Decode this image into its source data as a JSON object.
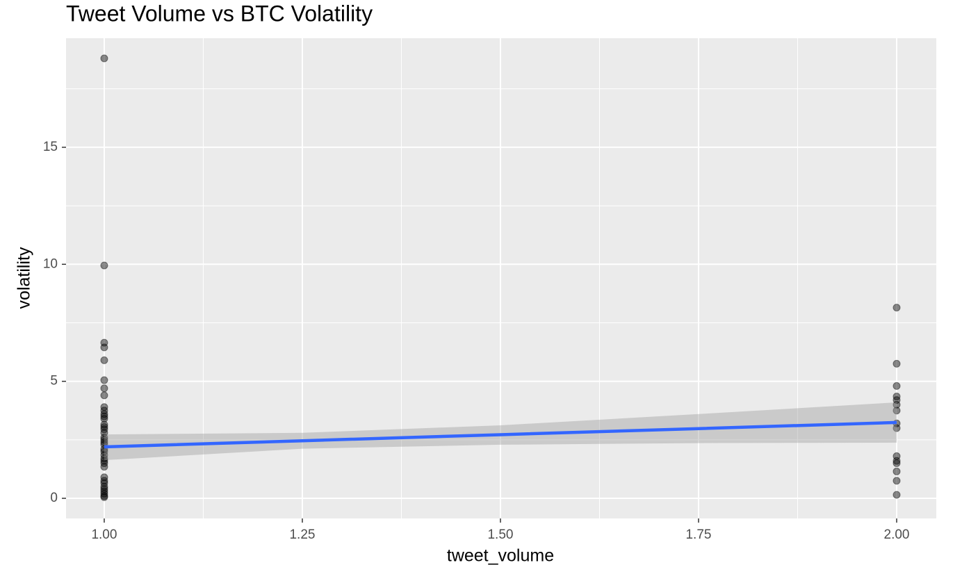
{
  "chart_data": {
    "type": "scatter",
    "title": "Tweet Volume vs BTC Volatility",
    "x_label": "tweet_volume",
    "y_label": "volatility",
    "xlim": [
      0.9518,
      2.05
    ],
    "ylim": [
      -0.86,
      19.66
    ],
    "xticks": [
      {
        "value": 1,
        "label": "1.00"
      },
      1.25,
      {
        "value": 1.5,
        "label": "1.50"
      },
      1.75,
      {
        "value": 2,
        "label": "2.00"
      }
    ],
    "yticks": [
      0,
      5,
      10,
      15
    ],
    "grid": true,
    "point_color": "#000000",
    "point_opacity": 0.45,
    "x": [
      1,
      1,
      1,
      1,
      1,
      1,
      1,
      1,
      1,
      1,
      1,
      1,
      1,
      1,
      1,
      1,
      1,
      1,
      1,
      1,
      1,
      1,
      1,
      1,
      1,
      1,
      1,
      1,
      1,
      1,
      1,
      1,
      1,
      1,
      1,
      1,
      1,
      2,
      2,
      2,
      2,
      2,
      2,
      2,
      2,
      2,
      2,
      2,
      2,
      2,
      2,
      2
    ],
    "values": [
      18.8,
      9.95,
      6.65,
      6.45,
      5.9,
      5.05,
      4.7,
      4.4,
      3.9,
      3.75,
      3.6,
      3.5,
      3.4,
      3.15,
      3.05,
      2.95,
      2.8,
      2.6,
      2.5,
      2.4,
      2.3,
      2.1,
      2.0,
      1.85,
      1.7,
      1.6,
      1.5,
      1.35,
      0.9,
      0.75,
      0.65,
      0.5,
      0.4,
      0.3,
      0.2,
      0.1,
      0.05,
      8.15,
      5.75,
      4.8,
      4.35,
      4.2,
      4.0,
      3.75,
      3.2,
      3.0,
      1.8,
      1.6,
      1.5,
      1.15,
      0.75,
      0.15
    ],
    "fit": {
      "color": "#3366ff",
      "band_color": "#999999",
      "x": [
        1,
        1.25,
        1.5,
        1.75,
        2
      ],
      "values": [
        2.2,
        2.46,
        2.72,
        2.98,
        3.24
      ],
      "lower": [
        1.63,
        2.12,
        2.29,
        2.36,
        2.38
      ],
      "upper": [
        2.73,
        2.8,
        3.12,
        3.6,
        4.1
      ]
    }
  }
}
